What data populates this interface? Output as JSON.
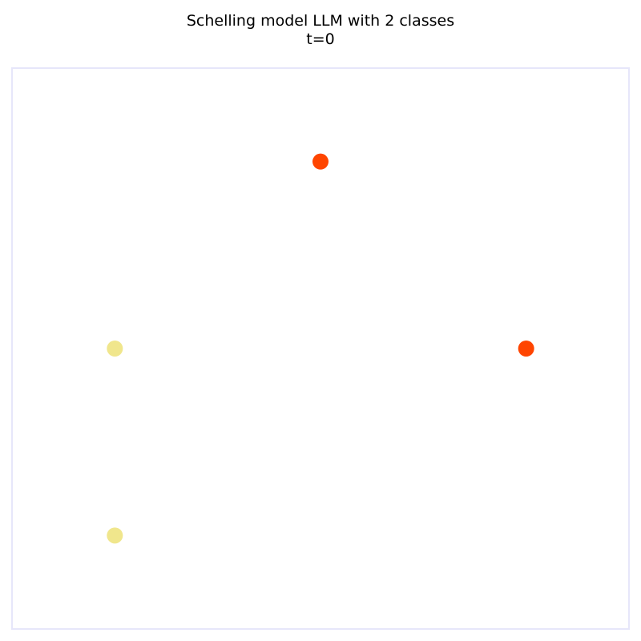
{
  "chart_data": {
    "type": "scatter",
    "title": "Schelling model LLM with 2 classes",
    "subtitle": "t=0",
    "xlabel": "",
    "ylabel": "",
    "xlim": [
      0,
      6
    ],
    "ylim": [
      0,
      6
    ],
    "grid": false,
    "legend": "none",
    "axis_ticks": false,
    "frame_color": "#e6e6fa",
    "background": "#ffffff",
    "classes": [
      {
        "color": "#ff4500",
        "points": [
          {
            "x": 3,
            "y": 5
          },
          {
            "x": 5,
            "y": 3
          }
        ]
      },
      {
        "color": "#f0e68c",
        "points": [
          {
            "x": 1,
            "y": 3
          },
          {
            "x": 1,
            "y": 1
          }
        ]
      }
    ]
  }
}
